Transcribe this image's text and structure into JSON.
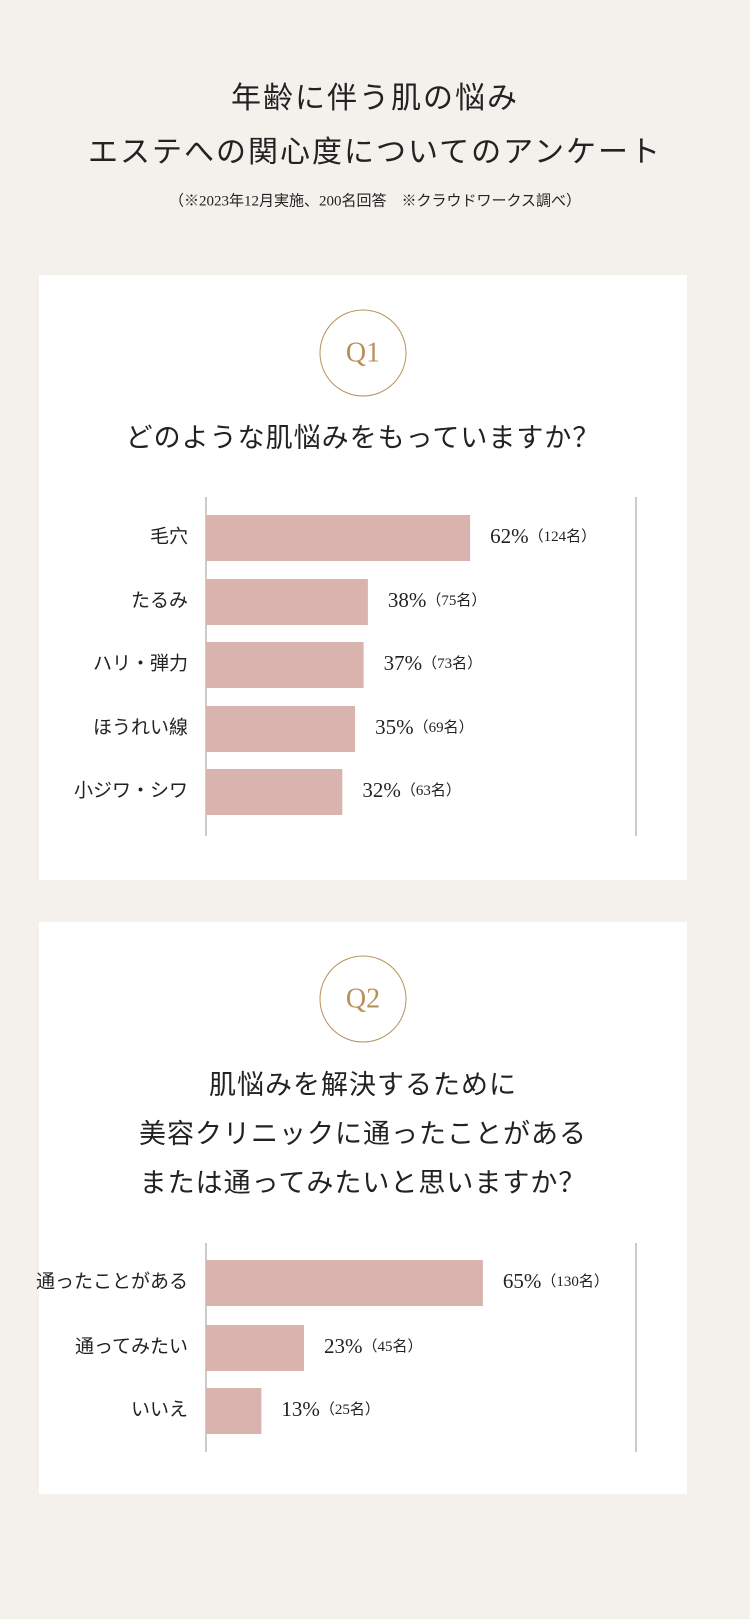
{
  "header": {
    "title": [
      "年齢に伴う肌の悩み",
      "エステへの関心度についてのアンケート"
    ],
    "subtitle": "（※2023年12月実施、200名回答　※クラウドワークス調べ）"
  },
  "chart_data": [
    {
      "type": "bar",
      "orientation": "horizontal",
      "number": "Q1",
      "question": [
        "どのような肌悩みをもっていますか？"
      ],
      "categories": [
        "毛穴",
        "たるみ",
        "ハリ・弾力",
        "ほうれい線",
        "小ジワ・シワ"
      ],
      "values": [
        62,
        38,
        37,
        35,
        32
      ],
      "value_labels": [
        "62%",
        "38%",
        "37%",
        "35%",
        "32%"
      ],
      "count_labels": [
        "（124名）",
        "（75名）",
        "（73名）",
        "（69名）",
        "（63名）"
      ],
      "xlim": [
        0,
        100
      ],
      "color": "#d9b3ad"
    },
    {
      "type": "bar",
      "orientation": "horizontal",
      "number": "Q2",
      "question": [
        "肌悩みを解決するために",
        "美容クリニックに通ったことがある",
        "または通ってみたいと思いますか？"
      ],
      "categories": [
        "通ったことがある",
        "通ってみたい",
        "いいえ"
      ],
      "values": [
        65,
        23,
        13
      ],
      "value_labels": [
        "65%",
        "23%",
        "13%"
      ],
      "count_labels": [
        "（130名）",
        "（45名）",
        "（25名）"
      ],
      "xlim": [
        0,
        100
      ],
      "color": "#d9b3ad"
    }
  ]
}
